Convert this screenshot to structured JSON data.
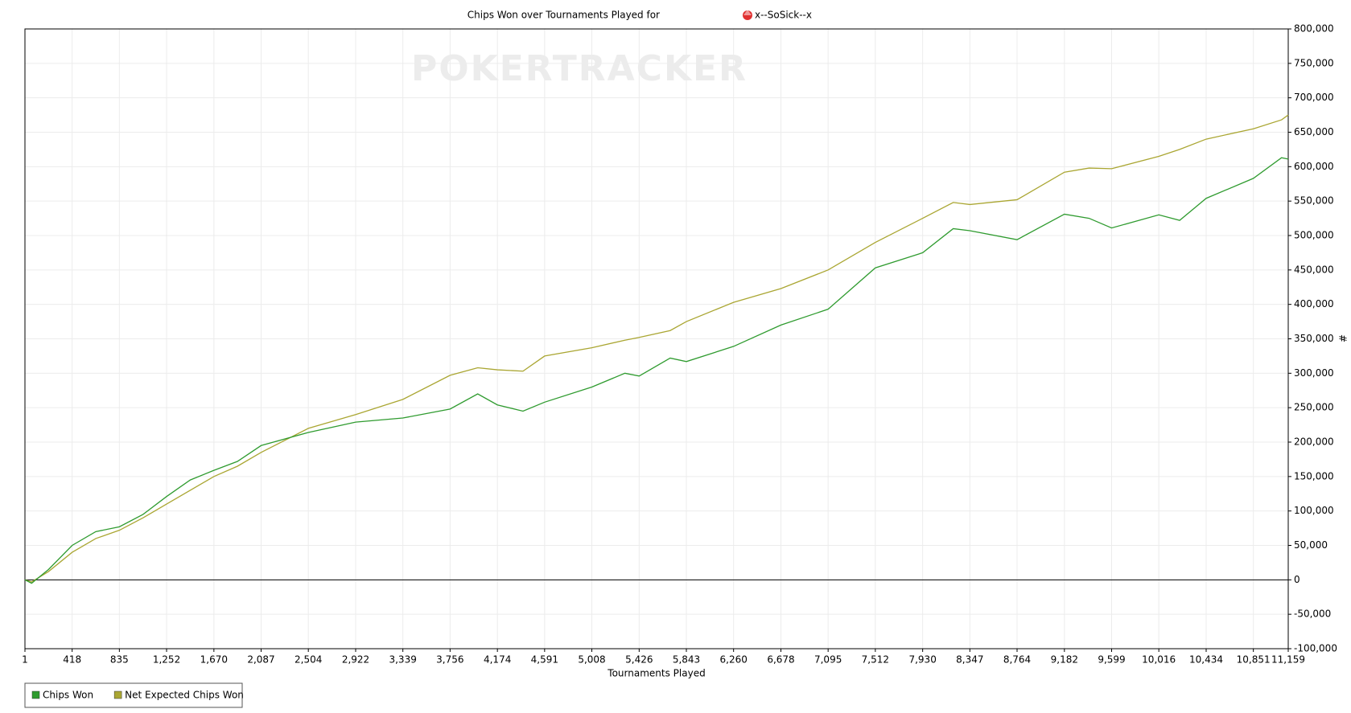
{
  "chart_data": {
    "type": "line",
    "title": "Chips Won over Tournaments Played for",
    "player": "x--SoSick--x",
    "watermark": "POKERTRACKER",
    "x_label": "Tournaments Played",
    "y_label": "#",
    "xlim": [
      1,
      11159
    ],
    "ylim": [
      -100000,
      800000
    ],
    "xticks": [
      1,
      {
        "value": 418,
        "label": "418"
      },
      {
        "value": 835,
        "label": "835"
      },
      {
        "value": 1252,
        "label": "1,252"
      },
      {
        "value": 1670,
        "label": "1,670"
      },
      {
        "value": 2087,
        "label": "2,087"
      },
      {
        "value": 2504,
        "label": "2,504"
      },
      {
        "value": 2922,
        "label": "2,922"
      },
      {
        "value": 3339,
        "label": "3,339"
      },
      {
        "value": 3756,
        "label": "3,756"
      },
      {
        "value": 4174,
        "label": "4,174"
      },
      {
        "value": 4591,
        "label": "4,591"
      },
      {
        "value": 5008,
        "label": "5,008"
      },
      {
        "value": 5426,
        "label": "5,426"
      },
      {
        "value": 5843,
        "label": "5,843"
      },
      {
        "value": 6260,
        "label": "6,260"
      },
      {
        "value": 6678,
        "label": "6,678"
      },
      {
        "value": 7095,
        "label": "7,095"
      },
      {
        "value": 7512,
        "label": "7,512"
      },
      {
        "value": 7930,
        "label": "7,930"
      },
      {
        "value": 8347,
        "label": "8,347"
      },
      {
        "value": 8764,
        "label": "8,764"
      },
      {
        "value": 9182,
        "label": "9,182"
      },
      {
        "value": 9599,
        "label": "9,599"
      },
      {
        "value": 10016,
        "label": "10,016"
      },
      {
        "value": 10434,
        "label": "10,434"
      },
      {
        "value": 10851,
        "label": "10,851"
      },
      {
        "value": 11159,
        "label": "11,159"
      }
    ],
    "yticks": [
      {
        "value": -100000,
        "label": "-100,000"
      },
      {
        "value": -50000,
        "label": "-50,000"
      },
      0,
      {
        "value": 50000,
        "label": "50,000"
      },
      {
        "value": 100000,
        "label": "100,000"
      },
      {
        "value": 150000,
        "label": "150,000"
      },
      {
        "value": 200000,
        "label": "200,000"
      },
      {
        "value": 250000,
        "label": "250,000"
      },
      {
        "value": 300000,
        "label": "300,000"
      },
      {
        "value": 350000,
        "label": "350,000"
      },
      {
        "value": 400000,
        "label": "400,000"
      },
      {
        "value": 450000,
        "label": "450,000"
      },
      {
        "value": 500000,
        "label": "500,000"
      },
      {
        "value": 550000,
        "label": "550,000"
      },
      {
        "value": 600000,
        "label": "600,000"
      },
      {
        "value": 650000,
        "label": "650,000"
      },
      {
        "value": 700000,
        "label": "700,000"
      },
      {
        "value": 750000,
        "label": "750,000"
      },
      {
        "value": 800000,
        "label": "800,000"
      }
    ],
    "grid": true,
    "legend": "bottom-left",
    "x": [
      1,
      60,
      209,
      418,
      627,
      835,
      1044,
      1252,
      1461,
      1670,
      1878,
      2087,
      2504,
      2922,
      3339,
      3756,
      4000,
      4174,
      4400,
      4591,
      5008,
      5300,
      5426,
      5700,
      5843,
      6260,
      6678,
      7095,
      7512,
      7930,
      8200,
      8347,
      8764,
      9182,
      9400,
      9599,
      10016,
      10200,
      10434,
      10851,
      11100,
      11159
    ],
    "series": [
      {
        "name": "Chips Won",
        "color": "#2f9b2f",
        "values": [
          0,
          -5000,
          15000,
          50000,
          70000,
          77000,
          95000,
          121000,
          145000,
          159000,
          172000,
          195000,
          214000,
          229000,
          235000,
          248000,
          270000,
          254000,
          245000,
          258000,
          280000,
          300000,
          296000,
          322000,
          317000,
          339000,
          370000,
          393000,
          453000,
          475000,
          510000,
          507000,
          494000,
          531000,
          525000,
          511000,
          530000,
          522000,
          554000,
          583000,
          613000,
          611000
        ]
      },
      {
        "name": "Net Expected Chips Won",
        "color": "#aaa632",
        "values": [
          0,
          -3000,
          12000,
          40000,
          60000,
          72000,
          90000,
          110000,
          130000,
          150000,
          165000,
          185000,
          220000,
          240000,
          262000,
          297000,
          308000,
          305000,
          303000,
          325000,
          337000,
          348000,
          352000,
          362000,
          375000,
          403000,
          423000,
          450000,
          490000,
          525000,
          548000,
          545000,
          552000,
          592000,
          598000,
          597000,
          615000,
          625000,
          640000,
          655000,
          668000,
          675000
        ]
      }
    ]
  }
}
